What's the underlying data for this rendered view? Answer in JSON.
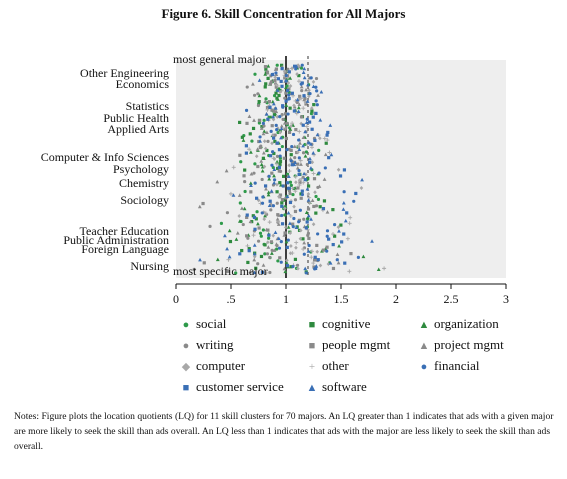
{
  "title": "Figure 6. Skill Concentration for All Majors",
  "chart_data": {
    "type": "scatter",
    "title": "Figure 6. Skill Concentration for All Majors",
    "xlim": [
      0,
      3
    ],
    "x_ticks": [
      "0",
      ".5",
      "1",
      "1.5",
      "2",
      "2.5",
      "3"
    ],
    "reference_lines": [
      1,
      1.2
    ],
    "annotations": {
      "top": "most general major",
      "bottom": "most specific major"
    },
    "major_labels": [
      "Other Engineering",
      "Economics",
      "Statistics",
      "Public Health",
      "Applied Arts",
      "Computer & Info Sciences",
      "Psychology",
      "Chemistry",
      "Sociology",
      "Teacher Education",
      "Public Administration",
      "Foreign Language",
      "Nursing"
    ],
    "y_scale": "major rank from most general (top) to most specific (bottom), 70 majors",
    "series": [
      {
        "name": "social",
        "color": "#2e9a4a",
        "marker": "dot"
      },
      {
        "name": "cognitive",
        "color": "#2e8a3e",
        "marker": "square"
      },
      {
        "name": "organization",
        "color": "#2e8a3e",
        "marker": "triangle"
      },
      {
        "name": "writing",
        "color": "#8a8a8a",
        "marker": "dot"
      },
      {
        "name": "people mgmt",
        "color": "#8a8a8a",
        "marker": "square"
      },
      {
        "name": "project mgmt",
        "color": "#8a8a8a",
        "marker": "triangle"
      },
      {
        "name": "computer",
        "color": "#a8a8a8",
        "marker": "diamond"
      },
      {
        "name": "other",
        "color": "#a8a8a8",
        "marker": "plus"
      },
      {
        "name": "financial",
        "color": "#3a6fb5",
        "marker": "dot"
      },
      {
        "name": "customer service",
        "color": "#3a6fb5",
        "marker": "square"
      },
      {
        "name": "software",
        "color": "#3a6fb5",
        "marker": "triangle"
      }
    ]
  },
  "legend": [
    {
      "label": "social",
      "marker": "●",
      "color": "#2e9a4a"
    },
    {
      "label": "writing",
      "marker": "●",
      "color": "#8a8a8a"
    },
    {
      "label": "computer",
      "marker": "◆",
      "color": "#a8a8a8"
    },
    {
      "label": "customer service",
      "marker": "■",
      "color": "#3a6fb5"
    },
    {
      "label": "cognitive",
      "marker": "■",
      "color": "#2e8a3e"
    },
    {
      "label": "people mgmt",
      "marker": "■",
      "color": "#8a8a8a"
    },
    {
      "label": "other",
      "marker": "+",
      "color": "#a8a8a8"
    },
    {
      "label": "software",
      "marker": "▲",
      "color": "#3a6fb5"
    },
    {
      "label": "organization",
      "marker": "▲",
      "color": "#2e8a3e"
    },
    {
      "label": "project mgmt",
      "marker": "▲",
      "color": "#8a8a8a"
    },
    {
      "label": "financial",
      "marker": "●",
      "color": "#3a6fb5"
    }
  ],
  "notes": "Notes: Figure plots the location quotients (LQ) for 11 skill clusters for 70 majors. An LQ greater than 1 indicates that ads with a given major are more likely to seek the skill than ads overall. An LQ less than 1 indicates that ads with the major are less likely to seek the skill than ads overall."
}
